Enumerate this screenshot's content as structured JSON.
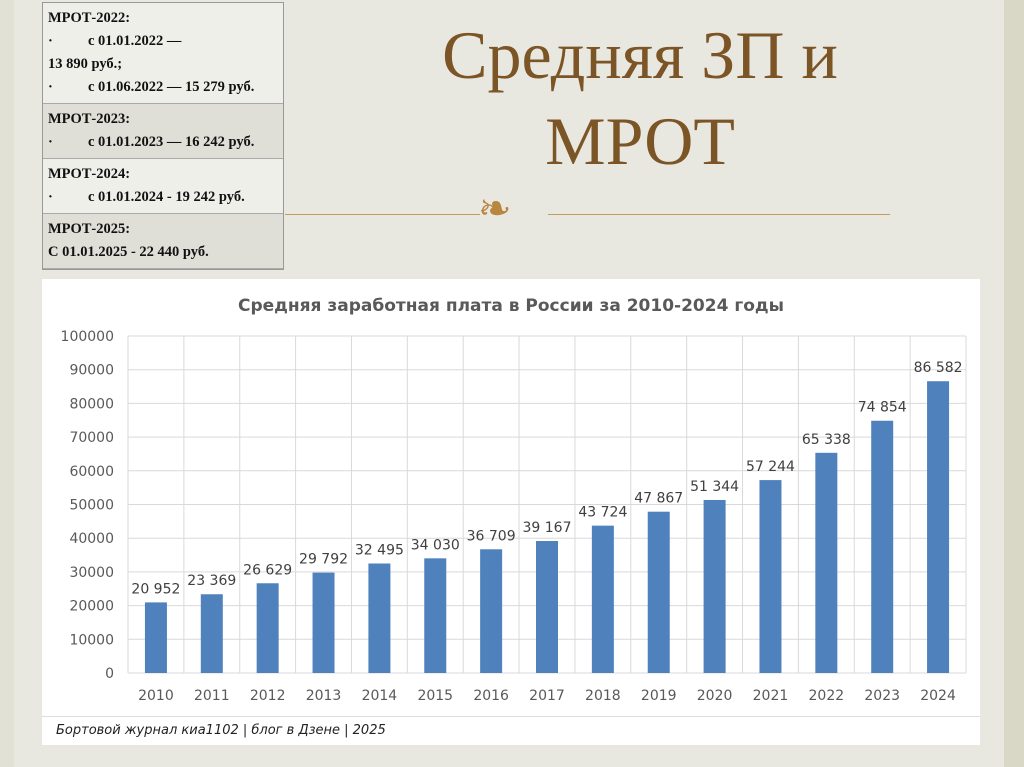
{
  "slide_title": "Средняя ЗП и МРОТ",
  "ornament_icon": "decorative-flourish",
  "mrot_table": [
    {
      "header": "МРОТ-2022:",
      "lines": [
        {
          "bullet": "·",
          "text": "с 01.01.2022 —"
        },
        {
          "bullet": "",
          "text": "13 890 руб.;"
        },
        {
          "bullet": "·",
          "text": "с 01.06.2022 — 15 279 руб."
        }
      ]
    },
    {
      "header": "МРОТ-2023:",
      "lines": [
        {
          "bullet": "·",
          "text": "с 01.01.2023 — 16 242 руб."
        }
      ]
    },
    {
      "header": "МРОТ-2024:",
      "lines": [
        {
          "bullet": "·",
          "text": "с 01.01.2024 - 19 242 руб."
        }
      ]
    },
    {
      "header": "МРОТ-2025:",
      "lines": [
        {
          "bullet": "",
          "text": "С 01.01.2025 - 22 440 руб."
        }
      ]
    }
  ],
  "footer": "Бортовой журнал киа1102 | блог в Дзене | 2025",
  "chart_data": {
    "type": "bar",
    "title": "Средняя заработная плата в России за 2010-2024 годы",
    "categories": [
      "2010",
      "2011",
      "2012",
      "2013",
      "2014",
      "2015",
      "2016",
      "2017",
      "2018",
      "2019",
      "2020",
      "2021",
      "2022",
      "2023",
      "2024"
    ],
    "values": [
      20952,
      23369,
      26629,
      29792,
      32495,
      34030,
      36709,
      39167,
      43724,
      47867,
      51344,
      57244,
      65338,
      74854,
      86582
    ],
    "data_labels": [
      "20 952",
      "23 369",
      "26 629",
      "29 792",
      "32 495",
      "34 030",
      "36 709",
      "39 167",
      "43 724",
      "47 867",
      "51 344",
      "57 244",
      "65 338",
      "74 854",
      "86 582"
    ],
    "yticks": [
      0,
      10000,
      20000,
      30000,
      40000,
      50000,
      60000,
      70000,
      80000,
      90000,
      100000
    ],
    "ylim": [
      0,
      100000
    ],
    "grid": true,
    "bar_color": "#4f81bd",
    "xlabel": "",
    "ylabel": ""
  }
}
